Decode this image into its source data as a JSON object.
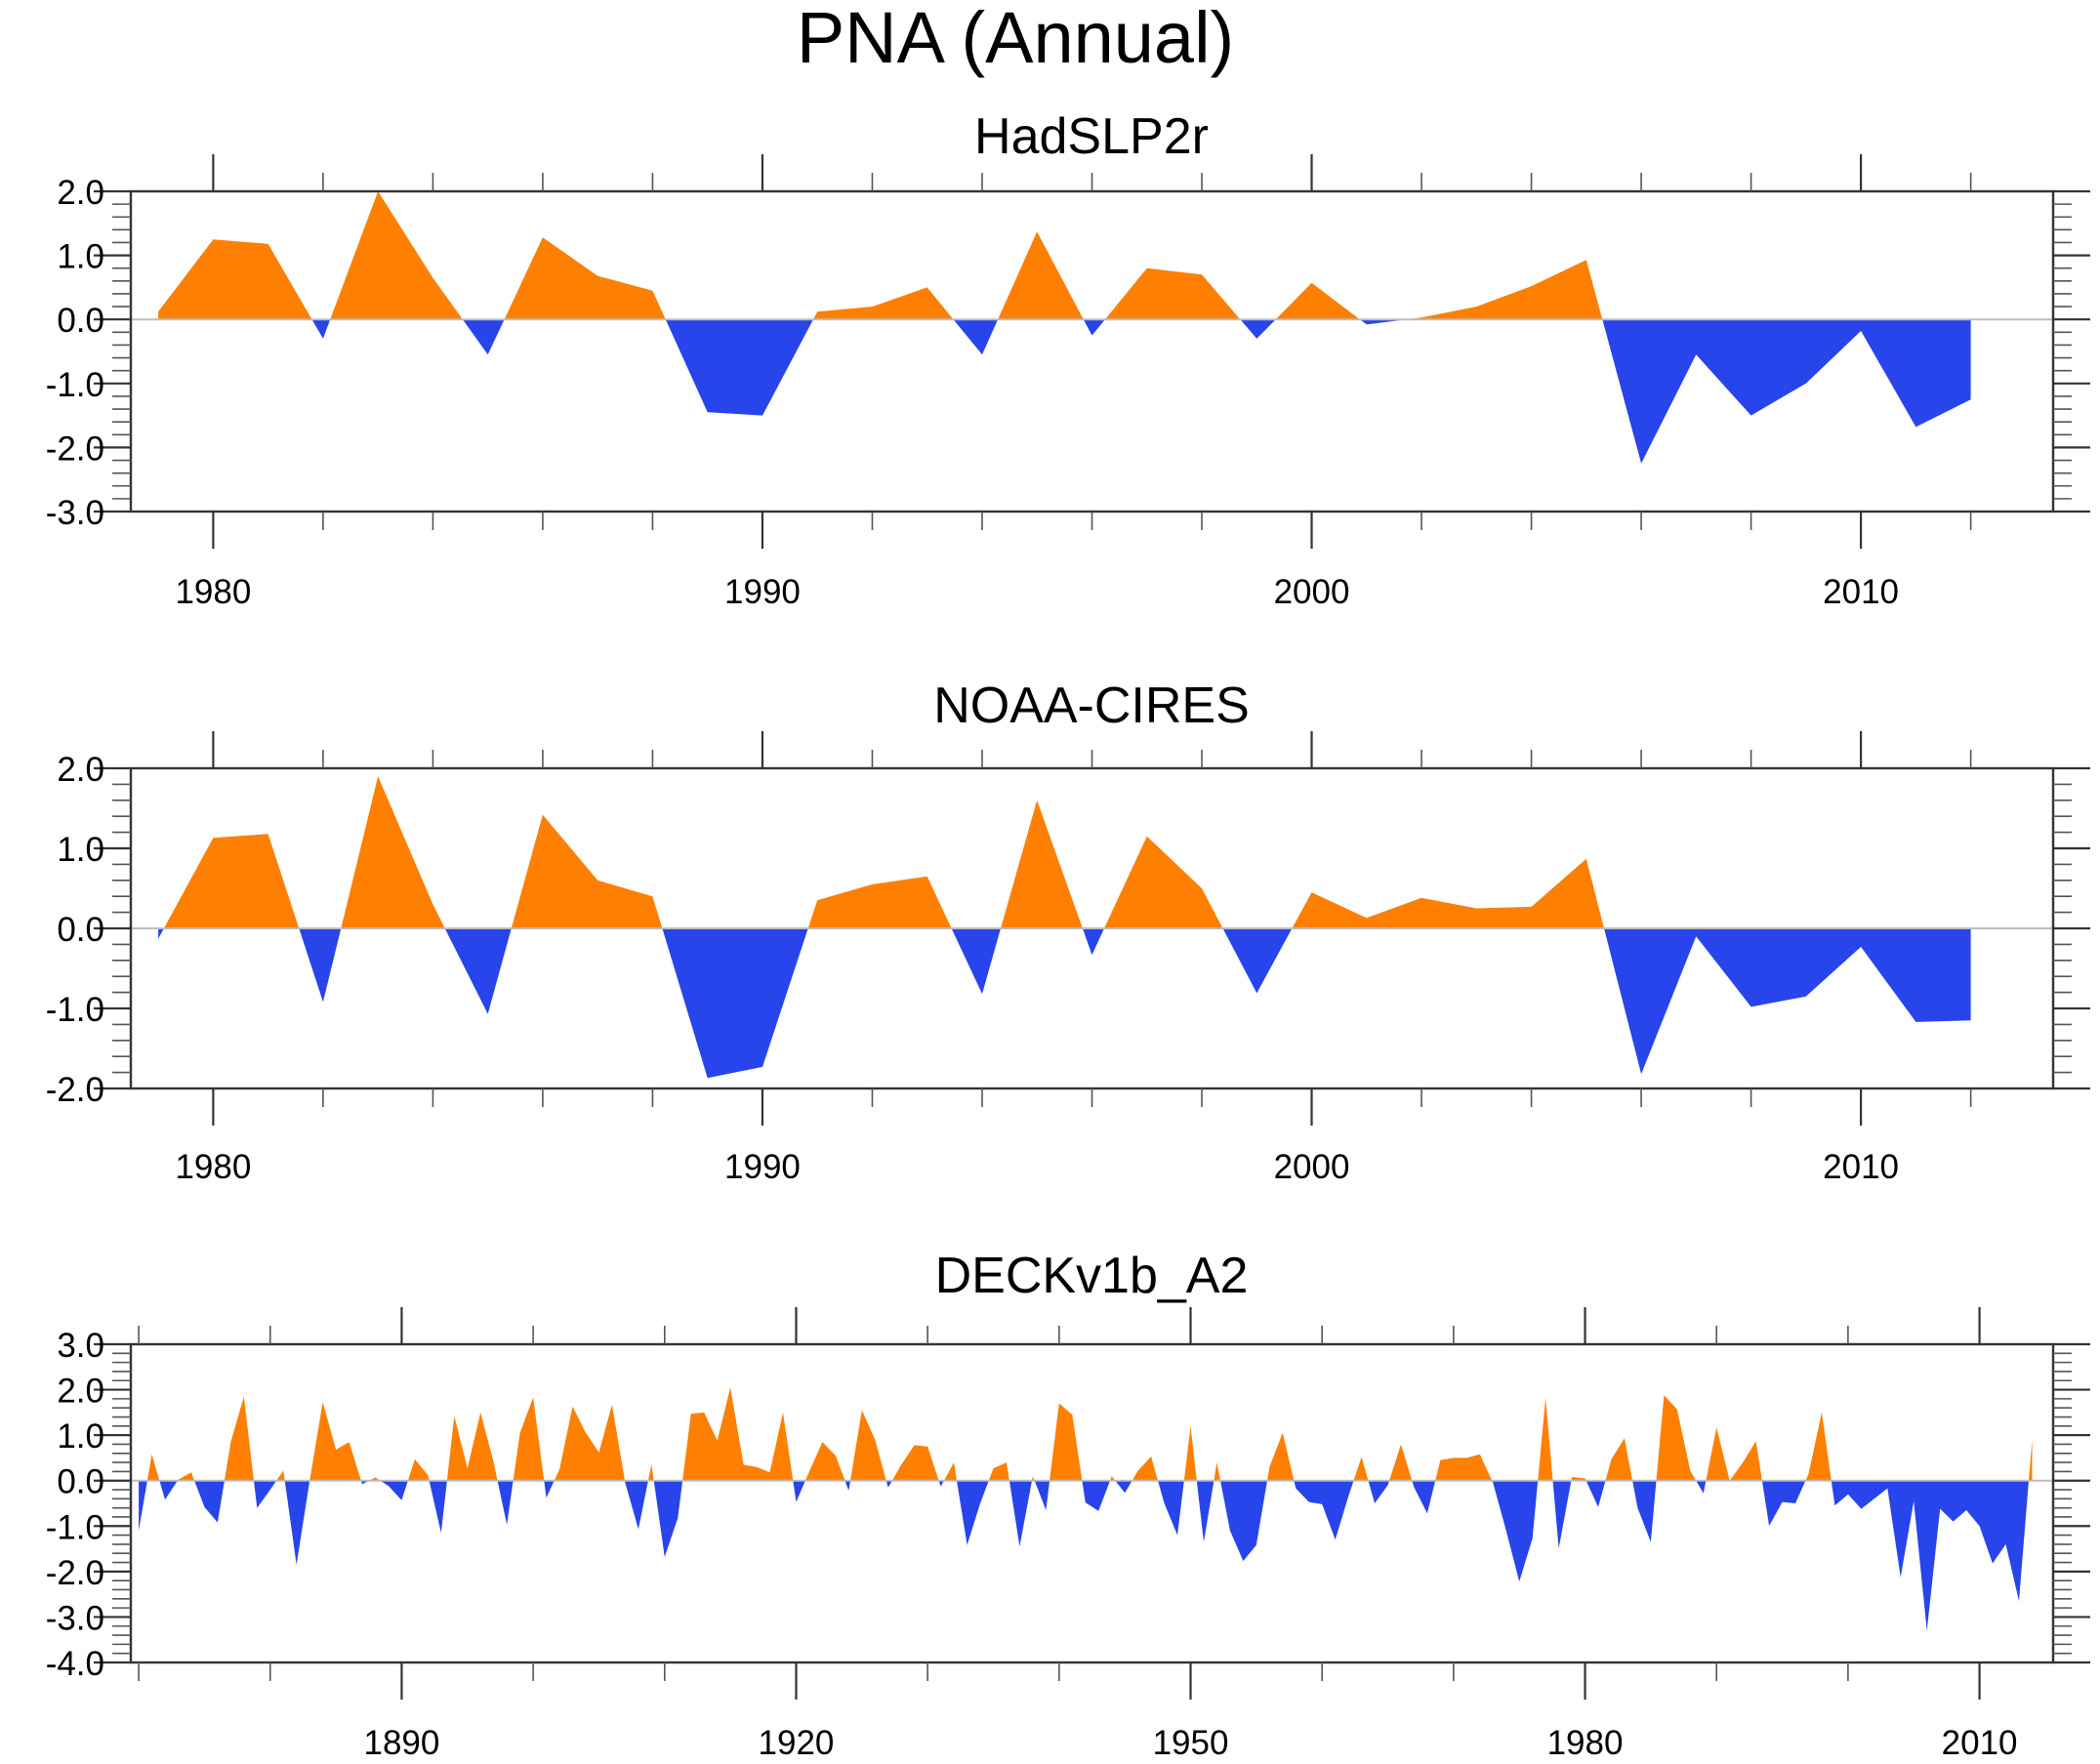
{
  "chart_data": {
    "title": "PNA (Annual)",
    "type": "area",
    "colors": {
      "positive": "#FF7F00",
      "negative": "#2844EB",
      "zero_line": "#BDBDBD",
      "frame": "#333333"
    },
    "panels": [
      {
        "title": "HadSLP2r",
        "type": "area",
        "xlim": [
          1978.5,
          2013.5
        ],
        "ylim": [
          -3.0,
          2.0
        ],
        "x_major_ticks": [
          1980,
          1990,
          2000,
          2010
        ],
        "x_tick_labels": [
          "1980",
          "1990",
          "2000",
          "2010"
        ],
        "x_minor_step": 2,
        "y_major_ticks": [
          2.0,
          1.0,
          0.0,
          -1.0,
          -2.0,
          -3.0
        ],
        "y_tick_labels": [
          "2.0",
          "1.0",
          "0.0",
          "-1.0",
          "-2.0",
          "-3.0"
        ],
        "y_minor_step": 0.2,
        "x": [
          1979,
          1980,
          1981,
          1982,
          1983,
          1984,
          1985,
          1986,
          1987,
          1988,
          1989,
          1990,
          1991,
          1992,
          1993,
          1994,
          1995,
          1996,
          1997,
          1998,
          1999,
          2000,
          2001,
          2002,
          2003,
          2004,
          2005,
          2006,
          2007,
          2008,
          2009,
          2010,
          2011,
          2012
        ],
        "values": [
          0.12,
          1.25,
          1.18,
          -0.3,
          2.0,
          0.65,
          -0.55,
          1.28,
          0.68,
          0.45,
          -1.45,
          -1.5,
          0.12,
          0.2,
          0.5,
          -0.55,
          1.37,
          -0.25,
          0.8,
          0.7,
          -0.3,
          0.57,
          -0.08,
          0.03,
          0.2,
          0.52,
          0.93,
          -2.25,
          -0.55,
          -1.5,
          -1.0,
          -0.18,
          -1.68,
          -1.25
        ]
      },
      {
        "title": "NOAA-CIRES",
        "type": "area",
        "xlim": [
          1978.5,
          2013.5
        ],
        "ylim": [
          -2.0,
          2.0
        ],
        "x_major_ticks": [
          1980,
          1990,
          2000,
          2010
        ],
        "x_tick_labels": [
          "1980",
          "1990",
          "2000",
          "2010"
        ],
        "x_minor_step": 2,
        "y_major_ticks": [
          2.0,
          1.0,
          0.0,
          -1.0,
          -2.0
        ],
        "y_tick_labels": [
          "2.0",
          "1.0",
          "0.0",
          "-1.0",
          "-2.0"
        ],
        "y_minor_step": 0.2,
        "x": [
          1979,
          1980,
          1981,
          1982,
          1983,
          1984,
          1985,
          1986,
          1987,
          1988,
          1989,
          1990,
          1991,
          1992,
          1993,
          1994,
          1995,
          1996,
          1997,
          1998,
          1999,
          2000,
          2001,
          2002,
          2003,
          2004,
          2005,
          2006,
          2007,
          2008,
          2009,
          2010,
          2011,
          2012
        ],
        "values": [
          -0.13,
          1.13,
          1.18,
          -0.92,
          1.9,
          0.3,
          -1.07,
          1.42,
          0.6,
          0.4,
          -1.87,
          -1.73,
          0.35,
          0.55,
          0.65,
          -0.82,
          1.6,
          -0.33,
          1.15,
          0.5,
          -0.81,
          0.45,
          0.13,
          0.38,
          0.25,
          0.27,
          0.87,
          -1.82,
          -0.1,
          -0.98,
          -0.85,
          -0.23,
          -1.17,
          -1.15
        ]
      },
      {
        "title": "DECKv1b_A2",
        "type": "area",
        "xlim": [
          1869.4,
          2015.6
        ],
        "ylim": [
          -4.0,
          3.0
        ],
        "x_major_ticks": [
          1890,
          1920,
          1950,
          1980,
          2010
        ],
        "x_tick_labels": [
          "1890",
          "1920",
          "1950",
          "1980",
          "2010"
        ],
        "x_minor_step": 10,
        "x_minor_start": 1870,
        "y_major_ticks": [
          3.0,
          2.0,
          1.0,
          0.0,
          -1.0,
          -2.0,
          -3.0,
          -4.0
        ],
        "y_tick_labels": [
          "3.0",
          "2.0",
          "1.0",
          "0.0",
          "-1.0",
          "-2.0",
          "-3.0",
          "-4.0"
        ],
        "y_minor_step": 0.2,
        "x_start": 1870,
        "values": [
          -1.1,
          0.58,
          -0.42,
          0.02,
          0.18,
          -0.58,
          -0.92,
          0.85,
          1.85,
          -0.6,
          -0.2,
          0.22,
          -1.85,
          0.0,
          1.73,
          0.68,
          0.85,
          -0.08,
          0.07,
          -0.12,
          -0.43,
          0.47,
          0.12,
          -1.15,
          1.42,
          0.27,
          1.5,
          0.4,
          -0.97,
          1.05,
          1.83,
          -0.38,
          0.25,
          1.63,
          1.05,
          0.62,
          1.67,
          -0.05,
          -1.07,
          0.36,
          -1.68,
          -0.82,
          1.47,
          1.5,
          0.88,
          2.05,
          0.35,
          0.3,
          0.18,
          1.5,
          -0.47,
          0.2,
          0.85,
          0.55,
          -0.22,
          1.55,
          0.9,
          -0.15,
          0.35,
          0.78,
          0.75,
          -0.13,
          0.4,
          -1.42,
          -0.5,
          0.27,
          0.4,
          -1.45,
          0.1,
          -0.65,
          1.7,
          1.45,
          -0.48,
          -0.67,
          0.1,
          -0.27,
          0.22,
          0.53,
          -0.5,
          -1.2,
          1.2,
          -1.35,
          0.4,
          -1.1,
          -1.77,
          -1.42,
          0.3,
          1.05,
          -0.17,
          -0.47,
          -0.52,
          -1.3,
          -0.35,
          0.52,
          -0.5,
          -0.1,
          0.8,
          -0.15,
          -0.72,
          0.45,
          0.5,
          0.5,
          0.58,
          -0.05,
          -1.1,
          -2.22,
          -1.27,
          1.82,
          -1.49,
          0.08,
          0.05,
          -0.58,
          0.47,
          0.93,
          -0.6,
          -1.35,
          1.88,
          1.57,
          0.22,
          -0.28,
          1.17,
          0.0,
          0.4,
          0.87,
          -1.0,
          -0.47,
          -0.5,
          0.15,
          1.5,
          -0.55,
          -0.3,
          -0.62,
          -0.4,
          -0.17,
          -2.13,
          -0.45,
          -3.3,
          -0.62,
          -0.9,
          -0.65,
          -1.0,
          -1.82,
          -1.4,
          -2.65,
          0.9
        ]
      }
    ]
  }
}
